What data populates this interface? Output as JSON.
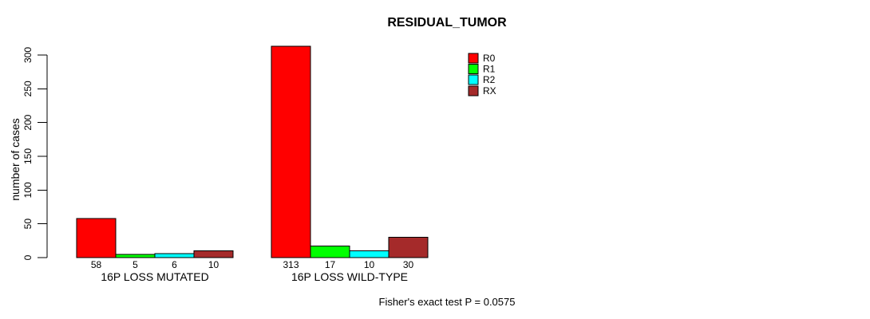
{
  "chart_data": {
    "type": "bar",
    "title": "RESIDUAL_TUMOR",
    "ylabel": "number of cases",
    "xlabel": "",
    "ylim": [
      0,
      300
    ],
    "yticks": [
      0,
      50,
      100,
      150,
      200,
      250,
      300
    ],
    "grid": false,
    "legend_position": "top-right-inside",
    "categories": [
      "16P LOSS MUTATED",
      "16P LOSS WILD-TYPE"
    ],
    "series": [
      {
        "name": "R0",
        "color": "#FF0000",
        "values": [
          58,
          313
        ]
      },
      {
        "name": "R1",
        "color": "#00FF00",
        "values": [
          5,
          17
        ]
      },
      {
        "name": "R2",
        "color": "#00FFFF",
        "values": [
          6,
          10
        ]
      },
      {
        "name": "RX",
        "color": "#A52A2A",
        "values": [
          10,
          30
        ]
      }
    ],
    "annotation": "Fisher's exact test P = 0.0575"
  },
  "colors": {
    "background": "#FFFFFF",
    "axis": "#000000",
    "bar_border": "#000000",
    "text": "#000000"
  }
}
